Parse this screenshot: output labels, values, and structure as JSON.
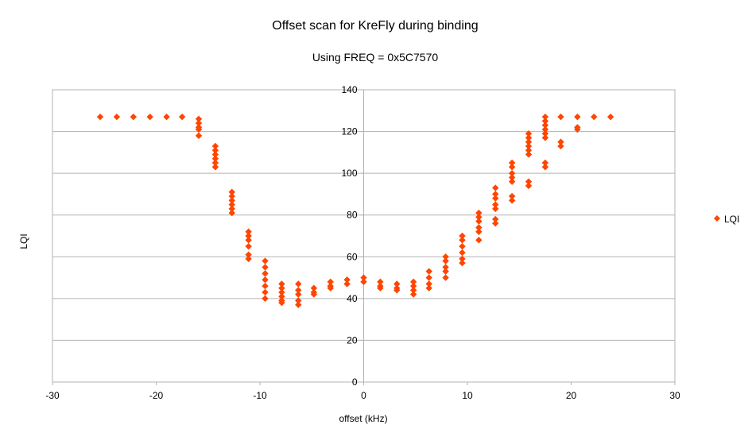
{
  "chart_data": {
    "type": "scatter",
    "title": "Offset scan for KreFly during binding",
    "subtitle": "Using FREQ = 0x5C7570",
    "xlabel": "offset (kHz)",
    "ylabel": "LQI",
    "xlim": [
      -30,
      30
    ],
    "ylim": [
      0,
      140
    ],
    "x_ticks": [
      -30,
      -20,
      -10,
      0,
      10,
      20,
      30
    ],
    "y_ticks": [
      0,
      20,
      40,
      60,
      80,
      100,
      120,
      140
    ],
    "grid": "horizontal",
    "legend_position": "right",
    "series": [
      {
        "name": "LQI",
        "color": "#ff4500",
        "marker": "diamond",
        "points": [
          [
            -25.4,
            127
          ],
          [
            -23.8,
            127
          ],
          [
            -22.2,
            127
          ],
          [
            -20.6,
            127
          ],
          [
            -19.0,
            127
          ],
          [
            -17.5,
            127
          ],
          [
            -15.9,
            126
          ],
          [
            -15.9,
            124
          ],
          [
            -15.9,
            122
          ],
          [
            -15.9,
            121
          ],
          [
            -15.9,
            118
          ],
          [
            -14.3,
            113
          ],
          [
            -14.3,
            111
          ],
          [
            -14.3,
            109
          ],
          [
            -14.3,
            107
          ],
          [
            -14.3,
            105
          ],
          [
            -14.3,
            103
          ],
          [
            -12.7,
            91
          ],
          [
            -12.7,
            89
          ],
          [
            -12.7,
            87
          ],
          [
            -12.7,
            85
          ],
          [
            -12.7,
            83
          ],
          [
            -12.7,
            81
          ],
          [
            -11.1,
            72
          ],
          [
            -11.1,
            70
          ],
          [
            -11.1,
            68
          ],
          [
            -11.1,
            65
          ],
          [
            -11.1,
            61
          ],
          [
            -11.1,
            59
          ],
          [
            -9.5,
            58
          ],
          [
            -9.5,
            55
          ],
          [
            -9.5,
            52
          ],
          [
            -9.5,
            49
          ],
          [
            -9.5,
            46
          ],
          [
            -9.5,
            43
          ],
          [
            -9.5,
            40
          ],
          [
            -7.9,
            47
          ],
          [
            -7.9,
            45
          ],
          [
            -7.9,
            43
          ],
          [
            -7.9,
            41
          ],
          [
            -7.9,
            39
          ],
          [
            -7.9,
            38
          ],
          [
            -6.3,
            47
          ],
          [
            -6.3,
            44
          ],
          [
            -6.3,
            42
          ],
          [
            -6.3,
            39
          ],
          [
            -6.3,
            37
          ],
          [
            -4.8,
            45
          ],
          [
            -4.8,
            43
          ],
          [
            -4.8,
            42
          ],
          [
            -3.2,
            48
          ],
          [
            -3.2,
            46
          ],
          [
            -3.2,
            45
          ],
          [
            -1.6,
            49
          ],
          [
            -1.6,
            47
          ],
          [
            0.0,
            50
          ],
          [
            0.0,
            48
          ],
          [
            1.6,
            48
          ],
          [
            1.6,
            46
          ],
          [
            1.6,
            45
          ],
          [
            3.2,
            47
          ],
          [
            3.2,
            45
          ],
          [
            3.2,
            44
          ],
          [
            4.8,
            48
          ],
          [
            4.8,
            46
          ],
          [
            4.8,
            44
          ],
          [
            4.8,
            42
          ],
          [
            6.3,
            53
          ],
          [
            6.3,
            50
          ],
          [
            6.3,
            47
          ],
          [
            6.3,
            45
          ],
          [
            7.9,
            60
          ],
          [
            7.9,
            58
          ],
          [
            7.9,
            55
          ],
          [
            7.9,
            53
          ],
          [
            7.9,
            50
          ],
          [
            9.5,
            70
          ],
          [
            9.5,
            68
          ],
          [
            9.5,
            65
          ],
          [
            9.5,
            62
          ],
          [
            9.5,
            59
          ],
          [
            9.5,
            57
          ],
          [
            11.1,
            81
          ],
          [
            11.1,
            79
          ],
          [
            11.1,
            77
          ],
          [
            11.1,
            74
          ],
          [
            11.1,
            72
          ],
          [
            11.1,
            68
          ],
          [
            12.7,
            93
          ],
          [
            12.7,
            90
          ],
          [
            12.7,
            88
          ],
          [
            12.7,
            85
          ],
          [
            12.7,
            83
          ],
          [
            12.7,
            78
          ],
          [
            12.7,
            76
          ],
          [
            14.3,
            105
          ],
          [
            14.3,
            103
          ],
          [
            14.3,
            100
          ],
          [
            14.3,
            98
          ],
          [
            14.3,
            96
          ],
          [
            14.3,
            89
          ],
          [
            14.3,
            87
          ],
          [
            15.9,
            119
          ],
          [
            15.9,
            117
          ],
          [
            15.9,
            115
          ],
          [
            15.9,
            113
          ],
          [
            15.9,
            111
          ],
          [
            15.9,
            109
          ],
          [
            15.9,
            96
          ],
          [
            15.9,
            94
          ],
          [
            17.5,
            127
          ],
          [
            17.5,
            125
          ],
          [
            17.5,
            123
          ],
          [
            17.5,
            121
          ],
          [
            17.5,
            119
          ],
          [
            17.5,
            117
          ],
          [
            17.5,
            105
          ],
          [
            17.5,
            103
          ],
          [
            19.0,
            127
          ],
          [
            19.0,
            115
          ],
          [
            19.0,
            113
          ],
          [
            20.6,
            127
          ],
          [
            20.6,
            122
          ],
          [
            20.6,
            121
          ],
          [
            22.2,
            127
          ],
          [
            23.8,
            127
          ]
        ]
      }
    ]
  }
}
